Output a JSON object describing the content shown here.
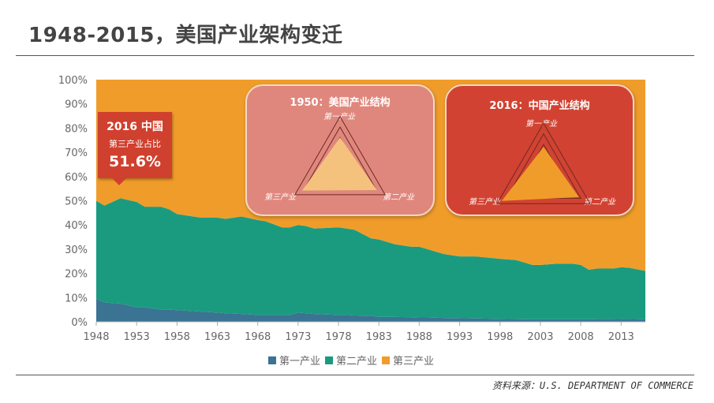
{
  "title": "1948-2015，美国产业架构变迁",
  "chart_data": {
    "type": "area",
    "stacked": true,
    "xlim": [
      1948,
      2016
    ],
    "ylim": [
      0,
      100
    ],
    "yticks": [
      "0%",
      "10%",
      "20%",
      "30%",
      "40%",
      "50%",
      "60%",
      "70%",
      "80%",
      "90%",
      "100%"
    ],
    "xticks": [
      "1948",
      "1953",
      "1958",
      "1963",
      "1968",
      "1973",
      "1978",
      "1983",
      "1988",
      "1993",
      "1998",
      "2003",
      "2008",
      "2013"
    ],
    "x": [
      1948,
      1949,
      1951,
      1953,
      1954,
      1956,
      1957,
      1958,
      1961,
      1963,
      1964,
      1966,
      1968,
      1969,
      1971,
      1972,
      1973,
      1974,
      1975,
      1978,
      1979,
      1980,
      1982,
      1983,
      1985,
      1987,
      1988,
      1989,
      1991,
      1993,
      1995,
      1998,
      2000,
      2002,
      2003,
      2005,
      2007,
      2008,
      2009,
      2010,
      2012,
      2013,
      2014,
      2016
    ],
    "series": [
      {
        "name": "第一产业",
        "color": "#3b7393",
        "values": [
          9.5,
          8,
          7.5,
          6,
          6,
          5,
          5,
          4.8,
          4.2,
          3.8,
          3.5,
          3.2,
          2.8,
          2.8,
          2.8,
          2.8,
          3.8,
          3.5,
          3.2,
          2.8,
          2.8,
          2.6,
          2.5,
          2.0,
          2.0,
          1.9,
          1.8,
          1.8,
          1.6,
          1.5,
          1.4,
          1.2,
          1.1,
          1.0,
          1.0,
          1.0,
          1.0,
          1.0,
          1.0,
          1.1,
          1.1,
          1.2,
          1.2,
          1.0
        ]
      },
      {
        "name": "第二产业",
        "color": "#1a9b80",
        "values": [
          40.5,
          40,
          43.5,
          43.5,
          41.5,
          42.5,
          41.5,
          39.7,
          38.8,
          39.2,
          39,
          40.3,
          39.2,
          38.7,
          36.2,
          36.2,
          36.2,
          36,
          35.3,
          36.2,
          35.7,
          35.4,
          32,
          32,
          30,
          29.1,
          29.2,
          28.2,
          26.4,
          25.5,
          25.6,
          24.8,
          24.4,
          22.5,
          22.5,
          23,
          23,
          22.5,
          20.5,
          20.9,
          20.9,
          21.3,
          21.1,
          20
        ]
      },
      {
        "name": "第三产业",
        "color": "#f09c2a",
        "values": [
          50,
          52,
          49,
          50.5,
          52.5,
          52.5,
          53.5,
          55.5,
          57,
          57,
          57.5,
          56.5,
          58,
          58.5,
          61,
          61,
          60,
          60.5,
          61.5,
          61,
          61.5,
          62,
          65.5,
          66,
          68,
          69,
          69,
          70,
          72,
          73,
          73,
          74,
          74.5,
          76.5,
          76.5,
          76,
          76,
          76.5,
          78.5,
          78,
          78,
          77.5,
          77.7,
          79
        ]
      }
    ],
    "legend": "bottom"
  },
  "callout": {
    "title": "2016 中国",
    "label": "第三产业占比",
    "value": "51.6%"
  },
  "radars": [
    {
      "title": "1950：美国产业结构",
      "axes": [
        "第一产业",
        "第二产业",
        "第三产业"
      ],
      "values": [
        3,
        4.1,
        4.2
      ],
      "max": 5,
      "box_color": "#e0877d",
      "fill": "#f5c27e"
    },
    {
      "title": "2016：中国产业结构",
      "axes": [
        "第一产业",
        "第二产业",
        "第三产业"
      ],
      "values": [
        2.8,
        3.8,
        4.5
      ],
      "max": 5,
      "box_color": "#d24232",
      "fill": "#f09c2a"
    }
  ],
  "source": "资料来源：U.S. DEPARTMENT OF COMMERCE"
}
